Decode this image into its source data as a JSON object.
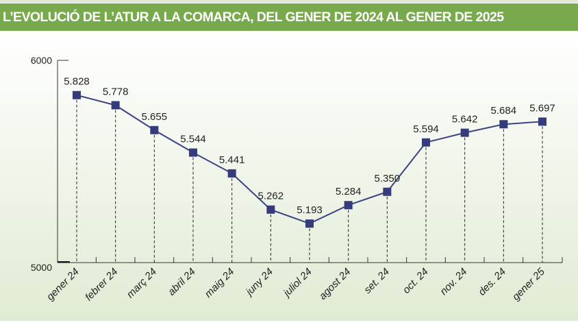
{
  "chart_data": {
    "type": "line",
    "title": "L’EVOLUCIÓ DE L’ATUR A LA COMARCA, DEL GENER DE 2024 AL GENER DE 2025",
    "xlabel": "",
    "ylabel": "",
    "ylim": [
      5000,
      6000
    ],
    "yticks": [
      "6000",
      "5000"
    ],
    "grid": false,
    "categories": [
      "gener 24",
      "febrer 24",
      "març 24",
      "abril 24",
      "maig 24",
      "juny 24",
      "juliol 24",
      "agost 24",
      "set. 24",
      "oct. 24",
      "nov. 24",
      "des. 24",
      "gener 25"
    ],
    "values": [
      5828,
      5778,
      5655,
      5544,
      5441,
      5262,
      5193,
      5284,
      5350,
      5594,
      5642,
      5684,
      5697
    ],
    "data_labels": [
      "5.828",
      "5.778",
      "5.655",
      "5.544",
      "5.441",
      "5.262",
      "5.193",
      "5.284",
      "5.350",
      "5.594",
      "5.642",
      "5.684",
      "5.697"
    ],
    "colors": {
      "line": "#3b4286",
      "marker": "#343c7c",
      "title_bar": "#78a94c"
    }
  }
}
